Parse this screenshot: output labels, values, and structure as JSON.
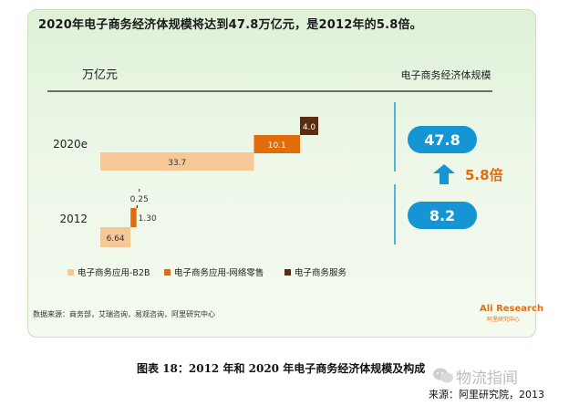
{
  "headline": "2020年电子商务经济体规模将达到47.8万亿元，是2012年的5.8倍。",
  "source_note": "数据来源：商务部，艾瑞咨询，易观咨询，阿里研究中心",
  "logo": {
    "text": "Ali Research",
    "sub": "阿里研究中心"
  },
  "caption": "图表 18：2012 年和 2020 年电子商务经济体规模及构成",
  "watermark": "物流指闻",
  "credit": "来源：阿里研究院，2013",
  "colors": {
    "b2b": "#f6c896",
    "retail": "#e36c0a",
    "service": "#5b2c0e",
    "bubble": "#1595d3",
    "arrow": "#1595d3",
    "multiple": "#e36c0a"
  },
  "chart_data": {
    "type": "bar",
    "subtype": "stacked-waterfall-horizontal",
    "unit_label": "万亿元",
    "right_header": "电子商务经济体规模",
    "categories": [
      "2020e",
      "2012"
    ],
    "series": [
      {
        "name": "电子商务应用-B2B",
        "values": [
          33.7,
          6.64
        ],
        "labels": [
          "33.7",
          "6.64"
        ]
      },
      {
        "name": "电子商务应用-网络零售",
        "values": [
          10.1,
          1.3
        ],
        "labels": [
          "10.1",
          "1.30"
        ]
      },
      {
        "name": "电子商务服务",
        "values": [
          4.0,
          0.25
        ],
        "labels": [
          "4.0",
          "0.25"
        ]
      }
    ],
    "totals": [
      {
        "category": "2020e",
        "value": 47.8,
        "label": "47.8"
      },
      {
        "category": "2012",
        "value": 8.2,
        "label": "8.2"
      }
    ],
    "growth_multiple": "5.8倍",
    "xlim": [
      0,
      48
    ],
    "legend_position": "bottom-left"
  }
}
